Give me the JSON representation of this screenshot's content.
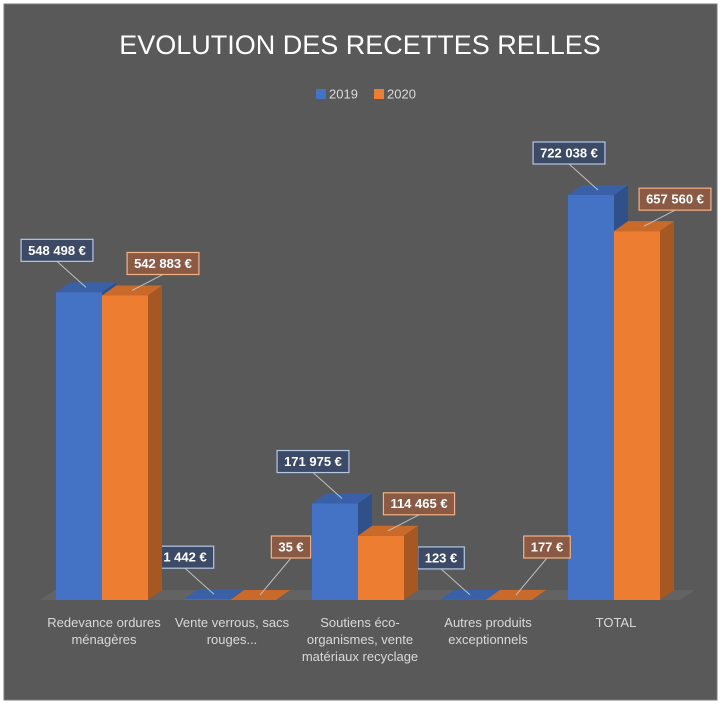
{
  "chart_data": {
    "type": "bar3d",
    "title": "EVOLUTION DES RECETTES RELLES",
    "categories": [
      "Redevance ordures ménagères",
      "Vente verrous, sacs rouges...",
      "Soutiens éco-organismes, vente matériaux recyclage",
      "Autres produits exceptionnels",
      "TOTAL"
    ],
    "series": [
      {
        "name": "2019",
        "color": "#4472c4",
        "values": [
          548498,
          1442,
          171975,
          123,
          722038
        ],
        "value_labels": [
          "548 498 €",
          "1 442 €",
          "171 975 €",
          "123 €",
          "722 038 €"
        ]
      },
      {
        "name": "2020",
        "color": "#ed7d31",
        "values": [
          542883,
          35,
          114465,
          177,
          657560
        ],
        "value_labels": [
          "542 883 €",
          "35 €",
          "114 465 €",
          "177 €",
          "657 560 €"
        ]
      }
    ],
    "legend": "top"
  }
}
